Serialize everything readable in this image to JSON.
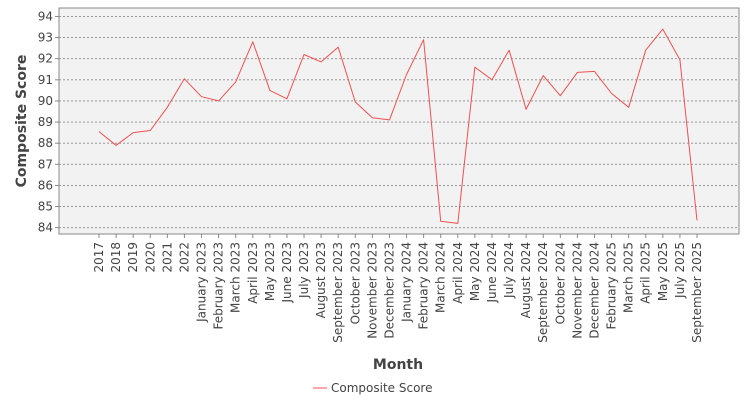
{
  "chart_data": {
    "type": "line",
    "title": "",
    "xlabel": "Month",
    "ylabel": "Composite Score",
    "ylim": [
      83.7,
      94.4
    ],
    "yticks": [
      84,
      85,
      86,
      87,
      88,
      89,
      90,
      91,
      92,
      93,
      94
    ],
    "grid": true,
    "legend_position": "bottom-center",
    "categories": [
      "2017",
      "2018",
      "2019",
      "2020",
      "2021",
      "2022",
      "January 2023",
      "February 2023",
      "March 2023",
      "April 2023",
      "May 2023",
      "June 2023",
      "July 2023",
      "August 2023",
      "September 2023",
      "October 2023",
      "November 2023",
      "December 2023",
      "January 2024",
      "February 2024",
      "March 2024",
      "April 2024",
      "May 2024",
      "June 2024",
      "July 2024",
      "August 2024",
      "September 2024",
      "October 2024",
      "November 2024",
      "December 2024",
      "February 2025",
      "March 2025",
      "April 2025",
      "May 2025",
      "July 2025",
      "September 2025"
    ],
    "series": [
      {
        "name": "Composite Score",
        "color": "#f05050",
        "values": [
          88.55,
          87.9,
          88.5,
          88.6,
          89.7,
          91.05,
          90.2,
          90.0,
          90.9,
          92.8,
          90.5,
          90.1,
          92.2,
          91.85,
          92.55,
          89.95,
          89.2,
          89.1,
          91.25,
          92.9,
          84.3,
          84.2,
          91.6,
          91.0,
          92.4,
          89.6,
          91.2,
          90.25,
          91.35,
          91.4,
          90.35,
          89.7,
          92.4,
          93.4,
          91.95,
          84.35
        ]
      }
    ]
  },
  "colors": {
    "plot_background": "#f2f2f2",
    "grid": "#8a8a8a",
    "axis": "#888888",
    "text": "#444444",
    "line": "#f05050"
  }
}
